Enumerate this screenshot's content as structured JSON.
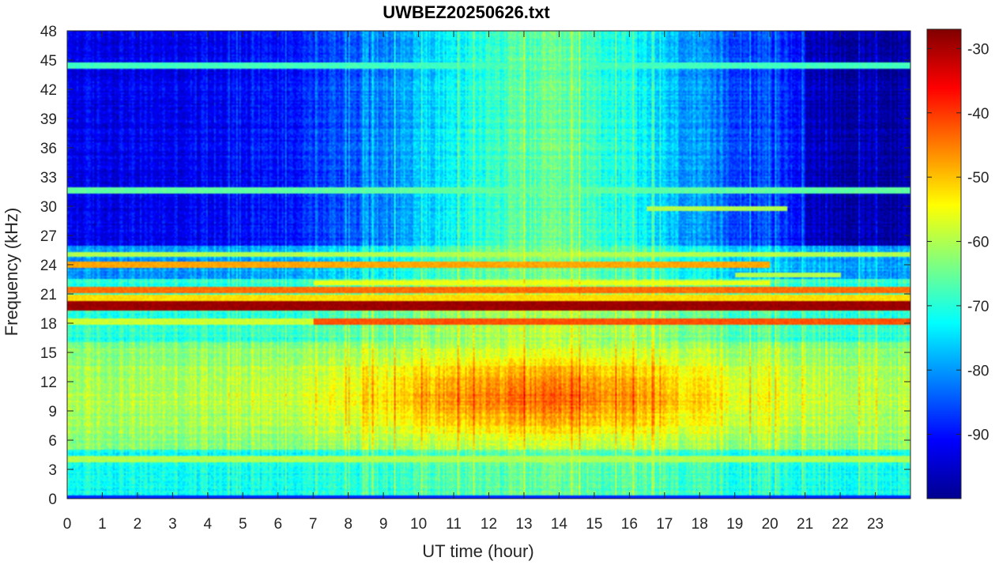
{
  "chart_data": {
    "type": "heatmap",
    "title": "UWBEZ20250626.txt",
    "xlabel": "UT time (hour)",
    "ylabel": "Frequency (kHz)",
    "xlim": [
      0,
      24
    ],
    "ylim": [
      0,
      48
    ],
    "x_ticks": [
      0,
      1,
      2,
      3,
      4,
      5,
      6,
      7,
      8,
      9,
      10,
      11,
      12,
      13,
      14,
      15,
      16,
      17,
      18,
      19,
      20,
      21,
      22,
      23
    ],
    "y_ticks": [
      0,
      3,
      6,
      9,
      12,
      15,
      18,
      21,
      24,
      27,
      30,
      33,
      36,
      39,
      42,
      45,
      48
    ],
    "colormap": "jet",
    "color_range": [
      -100,
      -27
    ],
    "colorbar_ticks": [
      -30,
      -40,
      -50,
      -60,
      -70,
      -80,
      -90
    ],
    "strong_lines_khz": [
      19.8,
      18.2,
      21.4,
      24.0,
      25.1,
      22.2,
      4.0,
      31.6,
      44.4
    ],
    "background_level_db": {
      "high_freq_early_hours": -88,
      "high_freq_midday": -72,
      "mid_band_6_to_15_khz_midday": -50,
      "low_freq": -70,
      "line_19_8_khz": -30
    }
  }
}
